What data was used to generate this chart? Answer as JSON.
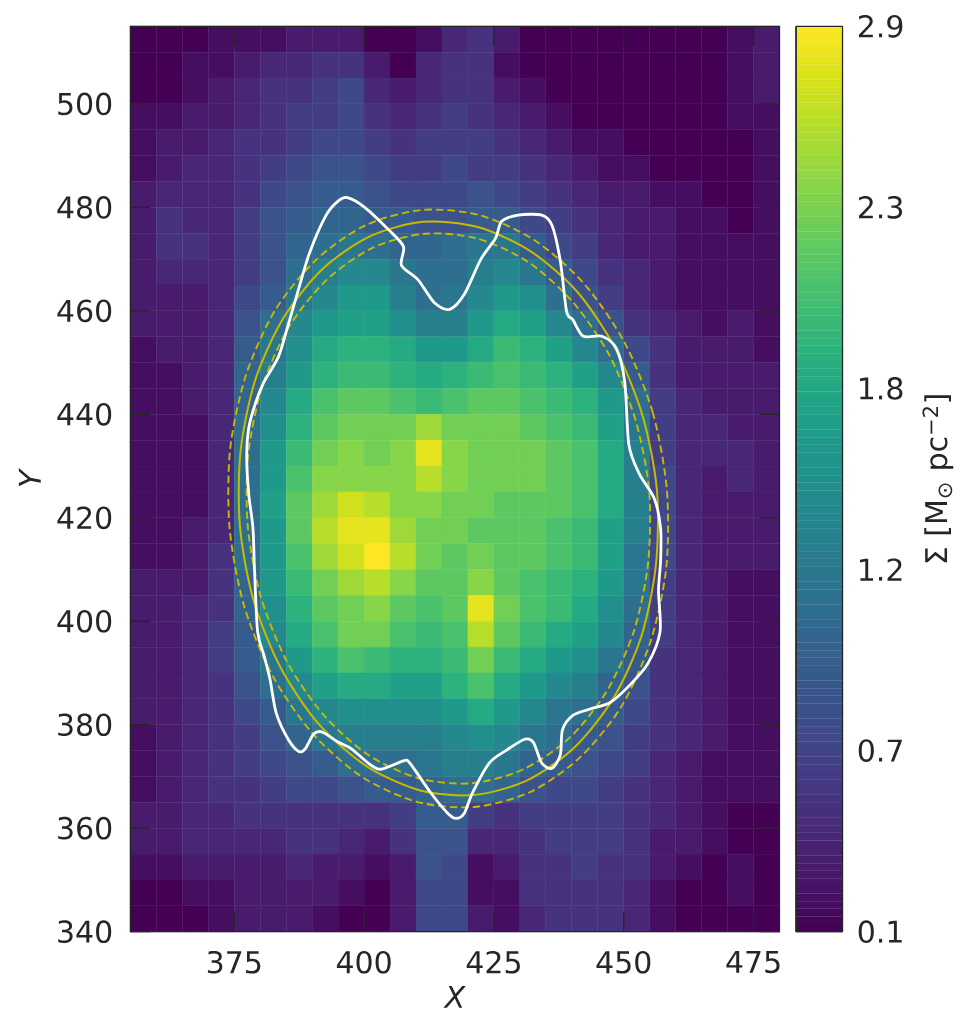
{
  "chart_data": {
    "type": "heatmap",
    "xlabel": "X",
    "ylabel": "Y",
    "clabel": "Σ [M$_{⊙}$ pc$^{−2}$]",
    "xlim": [
      355,
      480
    ],
    "ylim": [
      340,
      515
    ],
    "xticks": [
      375,
      400,
      425,
      450,
      475
    ],
    "yticks": [
      340,
      360,
      380,
      400,
      420,
      440,
      460,
      480,
      500
    ],
    "clim": [
      0.1,
      2.9
    ],
    "cticks": [
      0.1,
      {
        "value": 0.66,
        "label": "0.7"
      },
      {
        "value": 1.22,
        "label": "1.2"
      },
      {
        "value": 1.78,
        "label": "1.8"
      },
      {
        "value": 2.34,
        "label": "2.3"
      },
      2.9
    ],
    "cells": [
      [
        0.1,
        0.1,
        0.1,
        0.2,
        0.2,
        0.2,
        0.3,
        0.3,
        0.3,
        0.1,
        0.1,
        0.2,
        0.4,
        0.5,
        0.3,
        0.1,
        0.1,
        0.1,
        0.1,
        0.1,
        0.1,
        0.1,
        0.1,
        0.2,
        0.3
      ],
      [
        0.1,
        0.1,
        0.2,
        0.2,
        0.3,
        0.4,
        0.4,
        0.5,
        0.5,
        0.3,
        0.1,
        0.4,
        0.5,
        0.5,
        0.2,
        0.1,
        0.1,
        0.1,
        0.1,
        0.1,
        0.1,
        0.1,
        0.1,
        0.2,
        0.3
      ],
      [
        0.1,
        0.1,
        0.2,
        0.3,
        0.4,
        0.5,
        0.5,
        0.6,
        0.7,
        0.4,
        0.3,
        0.4,
        0.5,
        0.5,
        0.3,
        0.2,
        0.1,
        0.1,
        0.1,
        0.1,
        0.1,
        0.1,
        0.1,
        0.2,
        0.3
      ],
      [
        0.2,
        0.2,
        0.3,
        0.3,
        0.4,
        0.5,
        0.6,
        0.6,
        0.7,
        0.5,
        0.4,
        0.5,
        0.6,
        0.5,
        0.4,
        0.3,
        0.2,
        0.1,
        0.1,
        0.1,
        0.1,
        0.1,
        0.1,
        0.2,
        0.2
      ],
      [
        0.2,
        0.3,
        0.3,
        0.4,
        0.5,
        0.5,
        0.6,
        0.7,
        0.7,
        0.6,
        0.5,
        0.6,
        0.6,
        0.6,
        0.5,
        0.4,
        0.3,
        0.2,
        0.2,
        0.1,
        0.1,
        0.1,
        0.1,
        0.1,
        0.2
      ],
      [
        0.2,
        0.3,
        0.4,
        0.4,
        0.5,
        0.6,
        0.7,
        0.8,
        0.8,
        0.7,
        0.6,
        0.6,
        0.7,
        0.6,
        0.6,
        0.5,
        0.4,
        0.3,
        0.2,
        0.2,
        0.1,
        0.1,
        0.1,
        0.1,
        0.2
      ],
      [
        0.3,
        0.4,
        0.4,
        0.4,
        0.5,
        0.7,
        0.8,
        0.9,
        0.9,
        0.8,
        0.7,
        0.7,
        0.7,
        0.8,
        0.7,
        0.6,
        0.5,
        0.4,
        0.3,
        0.3,
        0.2,
        0.2,
        0.1,
        0.1,
        0.2
      ],
      [
        0.3,
        0.5,
        0.4,
        0.4,
        0.6,
        0.8,
        0.9,
        1.0,
        1.0,
        0.9,
        0.9,
        0.8,
        0.8,
        0.9,
        0.9,
        0.7,
        0.6,
        0.5,
        0.4,
        0.3,
        0.3,
        0.2,
        0.2,
        0.1,
        0.2
      ],
      [
        0.3,
        0.5,
        0.5,
        0.4,
        0.6,
        0.8,
        1.0,
        1.1,
        1.2,
        1.1,
        1.0,
        1.0,
        1.1,
        1.2,
        1.2,
        0.9,
        0.7,
        0.6,
        0.4,
        0.3,
        0.3,
        0.2,
        0.2,
        0.2,
        0.2
      ],
      [
        0.3,
        0.4,
        0.4,
        0.4,
        0.6,
        0.8,
        1.1,
        1.3,
        1.4,
        1.4,
        1.2,
        1.1,
        1.1,
        1.3,
        1.4,
        1.2,
        0.9,
        0.7,
        0.5,
        0.4,
        0.3,
        0.2,
        0.2,
        0.2,
        0.2
      ],
      [
        0.3,
        0.3,
        0.3,
        0.4,
        0.7,
        0.9,
        1.2,
        1.4,
        1.6,
        1.6,
        1.3,
        1.1,
        1.2,
        1.4,
        1.6,
        1.5,
        1.1,
        0.8,
        0.6,
        0.4,
        0.3,
        0.2,
        0.2,
        0.2,
        0.2
      ],
      [
        0.3,
        0.3,
        0.3,
        0.4,
        0.8,
        1.1,
        1.4,
        1.6,
        1.7,
        1.7,
        1.5,
        1.3,
        1.3,
        1.6,
        1.8,
        1.7,
        1.4,
        1.1,
        0.8,
        0.5,
        0.4,
        0.3,
        0.2,
        0.3,
        0.2
      ],
      [
        0.2,
        0.3,
        0.3,
        0.4,
        0.9,
        1.2,
        1.5,
        1.8,
        1.9,
        1.9,
        1.8,
        1.6,
        1.6,
        1.8,
        2.0,
        1.9,
        1.7,
        1.4,
        1.1,
        0.7,
        0.5,
        0.3,
        0.3,
        0.3,
        0.2
      ],
      [
        0.2,
        0.2,
        0.3,
        0.4,
        1.0,
        1.3,
        1.6,
        1.9,
        2.0,
        2.0,
        1.9,
        1.8,
        1.9,
        2.0,
        2.1,
        2.0,
        1.9,
        1.7,
        1.4,
        0.9,
        0.5,
        0.3,
        0.3,
        0.3,
        0.3
      ],
      [
        0.2,
        0.2,
        0.3,
        0.4,
        1.0,
        1.4,
        1.8,
        2.1,
        2.2,
        2.2,
        2.1,
        2.0,
        2.1,
        2.2,
        2.2,
        2.1,
        2.0,
        1.9,
        1.6,
        1.1,
        0.6,
        0.4,
        0.3,
        0.3,
        0.3
      ],
      [
        0.2,
        0.2,
        0.2,
        0.4,
        1.1,
        1.5,
        1.9,
        2.2,
        2.3,
        2.3,
        2.3,
        2.5,
        2.3,
        2.3,
        2.3,
        2.2,
        2.1,
        2.0,
        1.7,
        1.2,
        0.6,
        0.4,
        0.4,
        0.3,
        0.3
      ],
      [
        0.2,
        0.2,
        0.2,
        0.4,
        1.1,
        1.6,
        2.0,
        2.3,
        2.4,
        2.3,
        2.4,
        2.8,
        2.4,
        2.3,
        2.3,
        2.3,
        2.2,
        2.1,
        1.8,
        1.3,
        0.6,
        0.4,
        0.4,
        0.4,
        0.3
      ],
      [
        0.2,
        0.2,
        0.2,
        0.4,
        1.1,
        1.6,
        2.1,
        2.4,
        2.4,
        2.4,
        2.4,
        2.6,
        2.4,
        2.3,
        2.3,
        2.3,
        2.2,
        2.1,
        1.8,
        1.3,
        0.7,
        0.4,
        0.3,
        0.4,
        0.3
      ],
      [
        0.2,
        0.2,
        0.2,
        0.4,
        1.1,
        1.7,
        2.2,
        2.5,
        2.7,
        2.6,
        2.4,
        2.4,
        2.3,
        2.3,
        2.2,
        2.2,
        2.2,
        2.1,
        1.8,
        1.3,
        0.7,
        0.4,
        0.3,
        0.3,
        0.3
      ],
      [
        0.2,
        0.2,
        0.3,
        0.4,
        1.1,
        1.6,
        2.2,
        2.6,
        2.8,
        2.8,
        2.5,
        2.3,
        2.3,
        2.2,
        2.2,
        2.2,
        2.1,
        2.0,
        1.7,
        1.3,
        0.7,
        0.4,
        0.3,
        0.3,
        0.3
      ],
      [
        0.2,
        0.2,
        0.3,
        0.5,
        1.1,
        1.6,
        2.1,
        2.5,
        2.7,
        2.9,
        2.6,
        2.3,
        2.2,
        2.3,
        2.2,
        2.2,
        2.1,
        2.0,
        1.7,
        1.2,
        0.7,
        0.4,
        0.3,
        0.3,
        0.3
      ],
      [
        0.3,
        0.3,
        0.3,
        0.5,
        1.0,
        1.6,
        2.0,
        2.3,
        2.5,
        2.6,
        2.4,
        2.2,
        2.2,
        2.4,
        2.2,
        2.1,
        2.0,
        1.9,
        1.6,
        1.2,
        0.6,
        0.4,
        0.3,
        0.2,
        0.2
      ],
      [
        0.3,
        0.3,
        0.4,
        0.5,
        1.0,
        1.5,
        1.9,
        2.2,
        2.3,
        2.4,
        2.2,
        2.1,
        2.2,
        2.8,
        2.3,
        2.1,
        2.0,
        1.8,
        1.5,
        1.1,
        0.6,
        0.4,
        0.3,
        0.2,
        0.2
      ],
      [
        0.3,
        0.3,
        0.4,
        0.6,
        0.9,
        1.4,
        1.8,
        2.1,
        2.3,
        2.3,
        2.1,
        2.0,
        2.1,
        2.6,
        2.2,
        2.0,
        1.8,
        1.7,
        1.4,
        1.0,
        0.6,
        0.4,
        0.3,
        0.2,
        0.2
      ],
      [
        0.3,
        0.3,
        0.4,
        0.6,
        0.9,
        1.2,
        1.6,
        1.9,
        2.1,
        2.0,
        1.9,
        1.9,
        2.0,
        2.3,
        2.0,
        1.8,
        1.6,
        1.5,
        1.2,
        0.9,
        0.5,
        0.4,
        0.3,
        0.2,
        0.2
      ],
      [
        0.3,
        0.3,
        0.4,
        0.5,
        0.8,
        1.1,
        1.4,
        1.7,
        1.8,
        1.8,
        1.7,
        1.7,
        1.9,
        2.1,
        1.8,
        1.6,
        1.4,
        1.3,
        1.0,
        0.8,
        0.5,
        0.4,
        0.3,
        0.2,
        0.2
      ],
      [
        0.3,
        0.3,
        0.4,
        0.5,
        0.7,
        0.9,
        1.2,
        1.4,
        1.5,
        1.5,
        1.5,
        1.5,
        1.6,
        1.8,
        1.6,
        1.4,
        1.2,
        1.1,
        0.9,
        0.7,
        0.5,
        0.4,
        0.3,
        0.2,
        0.2
      ],
      [
        0.2,
        0.3,
        0.4,
        0.5,
        0.6,
        0.8,
        1.0,
        1.2,
        1.3,
        1.3,
        1.3,
        1.3,
        1.4,
        1.5,
        1.4,
        1.2,
        1.1,
        0.9,
        0.8,
        0.6,
        0.5,
        0.4,
        0.3,
        0.2,
        0.2
      ],
      [
        0.2,
        0.3,
        0.4,
        0.5,
        0.6,
        0.7,
        0.8,
        0.9,
        1.1,
        1.1,
        1.1,
        1.2,
        1.3,
        1.3,
        1.2,
        1.0,
        0.9,
        0.8,
        0.7,
        0.6,
        0.4,
        0.3,
        0.2,
        0.2,
        0.2
      ],
      [
        0.2,
        0.3,
        0.4,
        0.5,
        0.5,
        0.6,
        0.7,
        0.7,
        0.8,
        0.9,
        0.9,
        1.0,
        1.1,
        1.1,
        1.0,
        0.8,
        0.7,
        0.7,
        0.6,
        0.5,
        0.4,
        0.3,
        0.2,
        0.2,
        0.2
      ],
      [
        0.3,
        0.3,
        0.4,
        0.4,
        0.5,
        0.5,
        0.5,
        0.5,
        0.5,
        0.5,
        0.6,
        0.9,
        0.9,
        0.6,
        0.5,
        0.6,
        0.6,
        0.6,
        0.6,
        0.5,
        0.4,
        0.3,
        0.2,
        0.1,
        0.1
      ],
      [
        0.3,
        0.3,
        0.4,
        0.4,
        0.4,
        0.4,
        0.5,
        0.5,
        0.4,
        0.3,
        0.5,
        0.8,
        0.8,
        0.4,
        0.4,
        0.5,
        0.6,
        0.6,
        0.6,
        0.5,
        0.3,
        0.3,
        0.2,
        0.1,
        0.1
      ],
      [
        0.2,
        0.2,
        0.3,
        0.3,
        0.3,
        0.3,
        0.4,
        0.3,
        0.3,
        0.2,
        0.3,
        0.8,
        0.7,
        0.2,
        0.3,
        0.5,
        0.5,
        0.6,
        0.5,
        0.5,
        0.3,
        0.2,
        0.1,
        0.2,
        0.1
      ],
      [
        0.1,
        0.1,
        0.2,
        0.2,
        0.3,
        0.3,
        0.3,
        0.3,
        0.2,
        0.1,
        0.3,
        0.7,
        0.7,
        0.2,
        0.2,
        0.5,
        0.5,
        0.5,
        0.5,
        0.4,
        0.2,
        0.1,
        0.1,
        0.2,
        0.1
      ],
      [
        0.1,
        0.1,
        0.1,
        0.2,
        0.3,
        0.3,
        0.3,
        0.2,
        0.1,
        0.1,
        0.3,
        0.7,
        0.7,
        0.3,
        0.2,
        0.4,
        0.5,
        0.5,
        0.5,
        0.4,
        0.2,
        0.1,
        0.1,
        0.1,
        0.1
      ]
    ]
  }
}
